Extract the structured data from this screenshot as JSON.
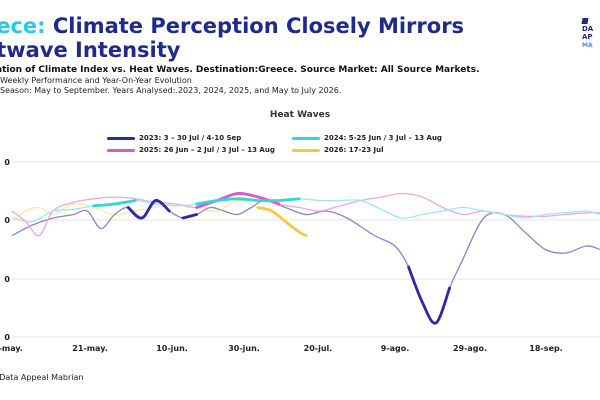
{
  "header": {
    "title_accent": "eece:",
    "title_main": "Climate Perception Closely Mirrors",
    "title_line2": "atwave Intensity",
    "subtitle": "ation of Climate Index vs. Heat Waves. Destination:Greece. Source Market: All Source Markets.",
    "info_line1": "Weekly Performance and Year-On-Year Evolution",
    "info_line2": "Season: May to September. Years Analysed:.2023, 2024, 2025, and May to July 2026.",
    "logo_line1": "DA",
    "logo_line2": "AP",
    "logo_line3": "MA"
  },
  "footer": {
    "source": ": Data Appeal Mabrian"
  },
  "chart_data": {
    "type": "line",
    "title": "Heat Waves",
    "x": [
      "1-may.",
      "21-may.",
      "10-jun.",
      "30-jun.",
      "20-jul.",
      "9-ago.",
      "29-ago.",
      "18-sep."
    ],
    "y_tick_labels": [
      "0",
      "0",
      "0",
      "0"
    ],
    "series": [
      {
        "name": "2023: 3 – 30 Jul / 4-10 Sep",
        "color": "#8a86c8",
        "highlight_color": "#2b2aa6",
        "points": [
          [
            0,
            58
          ],
          [
            3,
            64
          ],
          [
            6,
            68
          ],
          [
            9,
            70
          ],
          [
            11,
            72
          ],
          [
            13,
            62
          ],
          [
            15,
            70
          ],
          [
            17,
            74
          ],
          [
            19,
            68
          ],
          [
            21,
            78
          ],
          [
            23,
            72
          ],
          [
            25,
            68
          ],
          [
            27,
            70
          ],
          [
            29,
            74
          ],
          [
            31,
            72
          ],
          [
            33,
            70
          ],
          [
            35,
            74
          ],
          [
            37,
            78
          ],
          [
            40,
            74
          ],
          [
            43,
            70
          ],
          [
            46,
            72
          ],
          [
            49,
            68
          ],
          [
            53,
            58
          ],
          [
            56,
            52
          ],
          [
            58,
            40
          ],
          [
            60,
            20
          ],
          [
            62,
            8
          ],
          [
            64,
            28
          ],
          [
            66,
            45
          ],
          [
            69,
            68
          ],
          [
            72,
            70
          ],
          [
            75,
            60
          ],
          [
            78,
            50
          ],
          [
            81,
            48
          ],
          [
            84,
            52
          ],
          [
            86,
            50
          ]
        ],
        "highlights": [
          [
            17,
            23
          ],
          [
            24,
            27
          ],
          [
            57,
            65
          ]
        ]
      },
      {
        "name": "2024: 5-25 Jun / 3 Jul – 13 Aug",
        "color": "#9ee8f0",
        "highlight_color": "#33d6d6",
        "points": [
          [
            0,
            68
          ],
          [
            3,
            66
          ],
          [
            6,
            72
          ],
          [
            9,
            73
          ],
          [
            12,
            75
          ],
          [
            15,
            76
          ],
          [
            18,
            78
          ],
          [
            21,
            76
          ],
          [
            24,
            75
          ],
          [
            27,
            76
          ],
          [
            30,
            78
          ],
          [
            33,
            79
          ],
          [
            36,
            78
          ],
          [
            39,
            78
          ],
          [
            42,
            79
          ],
          [
            45,
            78
          ],
          [
            48,
            78
          ],
          [
            51,
            78
          ],
          [
            54,
            73
          ],
          [
            57,
            68
          ],
          [
            60,
            70
          ],
          [
            63,
            72
          ],
          [
            66,
            74
          ],
          [
            69,
            72
          ],
          [
            72,
            70
          ],
          [
            75,
            68
          ],
          [
            78,
            70
          ],
          [
            81,
            71
          ],
          [
            84,
            72
          ],
          [
            86,
            70
          ]
        ],
        "highlights": [
          [
            12,
            20
          ],
          [
            27,
            42
          ]
        ]
      },
      {
        "name": "2025: 26 Jun – 2 Jul / 3 Jul – 13 Aug",
        "color": "#efa6df",
        "highlight_color": "#d957d2",
        "points": [
          [
            0,
            72
          ],
          [
            2,
            66
          ],
          [
            4,
            58
          ],
          [
            6,
            72
          ],
          [
            9,
            77
          ],
          [
            12,
            79
          ],
          [
            15,
            80
          ],
          [
            18,
            79
          ],
          [
            21,
            77
          ],
          [
            24,
            76
          ],
          [
            27,
            74
          ],
          [
            30,
            78
          ],
          [
            33,
            82
          ],
          [
            36,
            80
          ],
          [
            39,
            76
          ],
          [
            42,
            74
          ],
          [
            45,
            72
          ],
          [
            48,
            75
          ],
          [
            51,
            78
          ],
          [
            54,
            80
          ],
          [
            57,
            82
          ],
          [
            60,
            80
          ],
          [
            63,
            74
          ],
          [
            66,
            70
          ],
          [
            69,
            72
          ],
          [
            72,
            70
          ],
          [
            75,
            69
          ],
          [
            78,
            69
          ],
          [
            81,
            70
          ],
          [
            84,
            71
          ],
          [
            86,
            71
          ]
        ],
        "highlights": [
          [
            26,
            27
          ],
          [
            27,
            40
          ]
        ]
      },
      {
        "name": "2026: 17-23 Jul",
        "color": "#fde6a8",
        "highlight_color": "#f5c842",
        "points": [
          [
            0,
            66
          ],
          [
            2,
            72
          ],
          [
            4,
            74
          ],
          [
            6,
            70
          ],
          [
            9,
            76
          ],
          [
            12,
            74
          ],
          [
            15,
            70
          ],
          [
            18,
            72
          ],
          [
            21,
            74
          ],
          [
            24,
            76
          ],
          [
            27,
            74
          ],
          [
            30,
            72
          ],
          [
            33,
            78
          ],
          [
            36,
            74
          ],
          [
            38,
            72
          ],
          [
            40,
            66
          ],
          [
            42,
            60
          ],
          [
            43,
            58
          ]
        ],
        "highlights": [
          [
            36,
            43
          ]
        ]
      }
    ],
    "legend_position": "top",
    "grid": true
  }
}
